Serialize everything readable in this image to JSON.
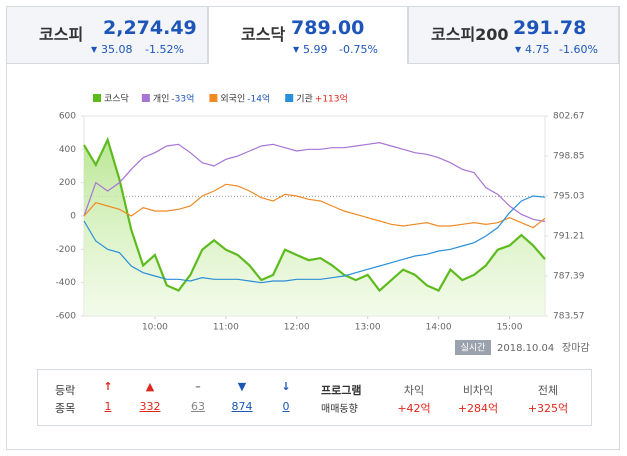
{
  "tabs": [
    {
      "name": "코스피",
      "value": "2,274.49",
      "change": "35.08",
      "rate": "-1.52%"
    },
    {
      "name": "코스닥",
      "value": "789.00",
      "change": "5.99",
      "rate": "-0.75%"
    },
    {
      "name": "코스피200",
      "value": "291.78",
      "change": "4.75",
      "rate": "-1.60%"
    }
  ],
  "chart_data": {
    "type": "line",
    "x": [
      540,
      550,
      560,
      570,
      580,
      590,
      600,
      610,
      620,
      630,
      640,
      650,
      660,
      670,
      680,
      690,
      700,
      710,
      720,
      730,
      740,
      750,
      760,
      770,
      780,
      790,
      800,
      810,
      820,
      830,
      840,
      850,
      860,
      870,
      880,
      890,
      900,
      910,
      920,
      930
    ],
    "xlim": [
      540,
      930
    ],
    "xticks": [
      {
        "value": 600,
        "label": "10:00"
      },
      {
        "value": 660,
        "label": "11:00"
      },
      {
        "value": 720,
        "label": "12:00"
      },
      {
        "value": 780,
        "label": "13:00"
      },
      {
        "value": 840,
        "label": "14:00"
      },
      {
        "value": 900,
        "label": "15:00"
      }
    ],
    "ylim": [
      -600,
      600
    ],
    "yticks": [
      600,
      400,
      200,
      0,
      -200,
      -400,
      -600
    ],
    "y2lim": [
      783.57,
      802.67
    ],
    "y2ticks": [
      802.67,
      798.85,
      795.03,
      791.21,
      787.39,
      783.57
    ],
    "reference_line": {
      "axis": "y2",
      "value": 794.99
    },
    "grid": false,
    "series": [
      {
        "name": "코스닥",
        "color": "#5dbb1e",
        "axis": "y2",
        "area": true,
        "values": [
          799.9,
          798.0,
          800.4,
          796.6,
          791.8,
          788.4,
          789.4,
          786.5,
          786.0,
          787.5,
          789.9,
          790.8,
          789.9,
          789.4,
          788.4,
          787.0,
          787.5,
          789.9,
          789.4,
          788.9,
          789.1,
          788.4,
          787.5,
          787.0,
          787.5,
          786.0,
          787.0,
          788.0,
          787.5,
          786.5,
          786.0,
          788.0,
          787.0,
          787.5,
          788.4,
          789.9,
          790.3,
          791.3,
          790.3,
          789.0
        ]
      },
      {
        "name": "개인",
        "legend_value": "-33억",
        "color": "#a774d6",
        "values": [
          0,
          200,
          150,
          200,
          280,
          350,
          380,
          420,
          430,
          380,
          320,
          300,
          340,
          360,
          390,
          420,
          430,
          410,
          390,
          400,
          400,
          410,
          410,
          420,
          430,
          440,
          420,
          400,
          380,
          370,
          350,
          320,
          280,
          260,
          170,
          130,
          60,
          10,
          -20,
          -33
        ]
      },
      {
        "name": "외국인",
        "legend_value": "-14억",
        "color": "#f08a24",
        "values": [
          0,
          80,
          60,
          40,
          0,
          50,
          30,
          30,
          40,
          60,
          120,
          150,
          190,
          180,
          150,
          110,
          90,
          130,
          120,
          100,
          90,
          60,
          30,
          10,
          -10,
          -30,
          -50,
          -60,
          -50,
          -40,
          -60,
          -60,
          -50,
          -40,
          -50,
          -40,
          -10,
          -40,
          -70,
          -14
        ]
      },
      {
        "name": "기관",
        "legend_value": "+113억",
        "color": "#2a8fd9",
        "values": [
          -30,
          -150,
          -200,
          -220,
          -300,
          -340,
          -360,
          -380,
          -380,
          -390,
          -370,
          -380,
          -380,
          -380,
          -390,
          -400,
          -390,
          -390,
          -380,
          -380,
          -380,
          -370,
          -360,
          -340,
          -320,
          -300,
          -280,
          -260,
          -240,
          -230,
          -210,
          -200,
          -180,
          -160,
          -120,
          -70,
          20,
          90,
          120,
          113
        ]
      }
    ]
  },
  "status": {
    "badge": "실시간",
    "date": "2018.10.04",
    "state": "장마감"
  },
  "breadth": {
    "title1": "등락",
    "title2": "종목",
    "items": [
      {
        "symbol": "↑",
        "value": "1"
      },
      {
        "symbol": "▲",
        "value": "332"
      },
      {
        "symbol": "–",
        "value": "63"
      },
      {
        "symbol": "▼",
        "value": "874"
      },
      {
        "symbol": "↓",
        "value": "0"
      }
    ]
  },
  "program": {
    "title1": "프로그램",
    "title2": "매매동향",
    "items": [
      {
        "label": "차익",
        "value": "+42억"
      },
      {
        "label": "비차익",
        "value": "+284억"
      },
      {
        "label": "전체",
        "value": "+325억"
      }
    ]
  }
}
